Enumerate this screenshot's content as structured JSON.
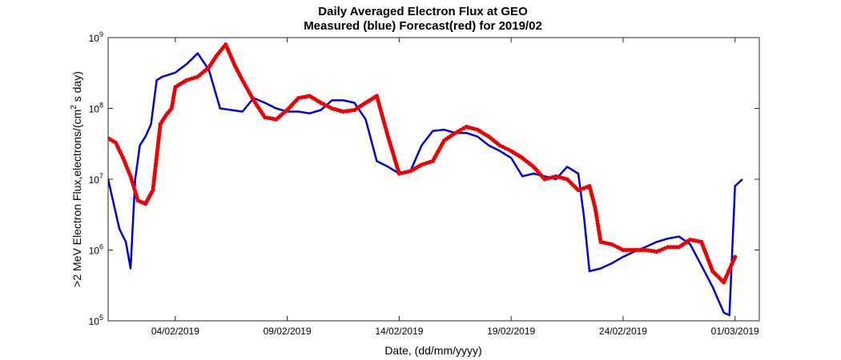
{
  "chart_data": {
    "type": "line",
    "title": "Daily Averaged Electron Flux at GEO",
    "subtitle": "Measured (blue) Forecast(red) for 2019/02",
    "xlabel": "Date, (dd/mm/yyyy)",
    "ylabel": ">2 MeV Electron Flux,electrons/(cm² s day)",
    "ylabel_parts": {
      "pre": ">2 MeV Electron Flux,electrons/(cm",
      "sup": "2",
      "post": " s day)"
    },
    "yscale": "log",
    "ylim": [
      100000,
      1000000000
    ],
    "xlim": [
      "2019-02-01",
      "2019-03-02T02:00"
    ],
    "grid": false,
    "x_ticks": [
      {
        "date": "2019-02-04",
        "label": "04/02/2019"
      },
      {
        "date": "2019-02-09",
        "label": "09/02/2019"
      },
      {
        "date": "2019-02-14",
        "label": "14/02/2019"
      },
      {
        "date": "2019-02-19",
        "label": "19/02/2019"
      },
      {
        "date": "2019-02-24",
        "label": "24/02/2019"
      },
      {
        "date": "2019-03-01",
        "label": "01/03/2019"
      }
    ],
    "y_ticks": [
      {
        "value": 100000,
        "base": "10",
        "exp": "5"
      },
      {
        "value": 1000000,
        "base": "10",
        "exp": "6"
      },
      {
        "value": 10000000,
        "base": "10",
        "exp": "7"
      },
      {
        "value": 100000000,
        "base": "10",
        "exp": "8"
      },
      {
        "value": 1000000000,
        "base": "10",
        "exp": "9"
      }
    ],
    "series": [
      {
        "color": "#0000dd",
        "style": "line",
        "x": [
          "2019-02-01T00:00",
          "2019-02-01T12:00",
          "2019-02-01T19:00",
          "2019-02-02T00:00",
          "2019-02-02T05:00",
          "2019-02-02T10:00",
          "2019-02-02T16:00",
          "2019-02-02T22:00",
          "2019-02-03T04:00",
          "2019-02-03T10:00",
          "2019-02-04T00:00",
          "2019-02-04T12:00",
          "2019-02-05T00:00",
          "2019-02-05T12:00",
          "2019-02-06T00:00",
          "2019-02-06T12:00",
          "2019-02-07T00:00",
          "2019-02-07T12:00",
          "2019-02-08T00:00",
          "2019-02-08T12:00",
          "2019-02-09T00:00",
          "2019-02-09T12:00",
          "2019-02-10T00:00",
          "2019-02-10T12:00",
          "2019-02-11T00:00",
          "2019-02-11T12:00",
          "2019-02-12T00:00",
          "2019-02-12T12:00",
          "2019-02-13T00:00",
          "2019-02-13T12:00",
          "2019-02-14T00:00",
          "2019-02-14T12:00",
          "2019-02-15T00:00",
          "2019-02-15T12:00",
          "2019-02-16T00:00",
          "2019-02-16T12:00",
          "2019-02-17T00:00",
          "2019-02-17T12:00",
          "2019-02-18T00:00",
          "2019-02-18T12:00",
          "2019-02-19T00:00",
          "2019-02-19T12:00",
          "2019-02-20T00:00",
          "2019-02-20T12:00",
          "2019-02-21T00:00",
          "2019-02-21T12:00",
          "2019-02-22T00:00",
          "2019-02-22T06:00",
          "2019-02-22T12:00",
          "2019-02-23T00:00",
          "2019-02-23T12:00",
          "2019-02-24T00:00",
          "2019-02-24T12:00",
          "2019-02-25T00:00",
          "2019-02-25T12:00",
          "2019-02-26T00:00",
          "2019-02-26T12:00",
          "2019-02-27T00:00",
          "2019-02-27T12:00",
          "2019-02-28T00:00",
          "2019-02-28T12:00",
          "2019-02-28T18:00",
          "2019-03-01T00:00",
          "2019-03-01T08:00"
        ],
        "values": [
          10000000,
          2000000,
          1300000,
          550000,
          10000000,
          30000000,
          40000000,
          60000000,
          250000000,
          280000000,
          320000000,
          420000000,
          600000000,
          350000000,
          100000000,
          95000000,
          90000000,
          140000000,
          120000000,
          100000000,
          90000000,
          90000000,
          85000000,
          95000000,
          130000000,
          130000000,
          120000000,
          70000000,
          18000000,
          15000000,
          12000000,
          13000000,
          30000000,
          48000000,
          50000000,
          45000000,
          45000000,
          40000000,
          30000000,
          25000000,
          20000000,
          11000000,
          12000000,
          11000000,
          10000000,
          15000000,
          12000000,
          3000000,
          500000,
          550000,
          650000,
          800000,
          950000,
          1100000,
          1300000,
          1450000,
          1550000,
          1200000,
          600000,
          300000,
          130000,
          120000,
          8000000,
          10000000
        ]
      },
      {
        "color": "#ee0000",
        "style": "markers",
        "x": [
          "2019-02-01T00:00",
          "2019-02-01T08:00",
          "2019-02-01T16:00",
          "2019-02-02T00:00",
          "2019-02-02T08:00",
          "2019-02-02T16:00",
          "2019-02-03T00:00",
          "2019-02-03T08:00",
          "2019-02-03T14:00",
          "2019-02-03T20:00",
          "2019-02-04T00:00",
          "2019-02-04T12:00",
          "2019-02-05T00:00",
          "2019-02-05T12:00",
          "2019-02-05T20:00",
          "2019-02-06T06:00",
          "2019-02-06T16:00",
          "2019-02-07T00:00",
          "2019-02-07T12:00",
          "2019-02-08T00:00",
          "2019-02-08T12:00",
          "2019-02-09T00:00",
          "2019-02-09T12:00",
          "2019-02-10T00:00",
          "2019-02-10T12:00",
          "2019-02-11T00:00",
          "2019-02-11T12:00",
          "2019-02-12T00:00",
          "2019-02-12T12:00",
          "2019-02-13T00:00",
          "2019-02-13T12:00",
          "2019-02-14T00:00",
          "2019-02-14T12:00",
          "2019-02-15T00:00",
          "2019-02-15T12:00",
          "2019-02-16T00:00",
          "2019-02-16T12:00",
          "2019-02-17T00:00",
          "2019-02-17T12:00",
          "2019-02-18T00:00",
          "2019-02-18T12:00",
          "2019-02-19T00:00",
          "2019-02-19T12:00",
          "2019-02-20T00:00",
          "2019-02-20T12:00",
          "2019-02-21T00:00",
          "2019-02-21T12:00",
          "2019-02-22T00:00",
          "2019-02-22T12:00",
          "2019-02-22T18:00",
          "2019-02-23T00:00",
          "2019-02-23T12:00",
          "2019-02-24T00:00",
          "2019-02-24T12:00",
          "2019-02-25T00:00",
          "2019-02-25T12:00",
          "2019-02-26T00:00",
          "2019-02-26T12:00",
          "2019-02-27T00:00",
          "2019-02-27T12:00",
          "2019-02-28T00:00",
          "2019-02-28T12:00",
          "2019-03-01T00:00"
        ],
        "values": [
          38000000,
          33000000,
          20000000,
          11000000,
          5000000,
          4500000,
          7000000,
          60000000,
          80000000,
          100000000,
          200000000,
          250000000,
          280000000,
          380000000,
          550000000,
          800000000,
          400000000,
          250000000,
          130000000,
          75000000,
          70000000,
          95000000,
          140000000,
          150000000,
          120000000,
          100000000,
          90000000,
          95000000,
          120000000,
          150000000,
          40000000,
          12000000,
          13000000,
          16000000,
          18000000,
          35000000,
          45000000,
          55000000,
          50000000,
          40000000,
          30000000,
          25000000,
          20000000,
          15000000,
          10000000,
          11000000,
          10000000,
          7000000,
          8000000,
          4000000,
          1300000,
          1200000,
          1000000,
          1000000,
          1000000,
          950000,
          1100000,
          1100000,
          1400000,
          1300000,
          500000,
          350000,
          800000
        ]
      }
    ]
  }
}
